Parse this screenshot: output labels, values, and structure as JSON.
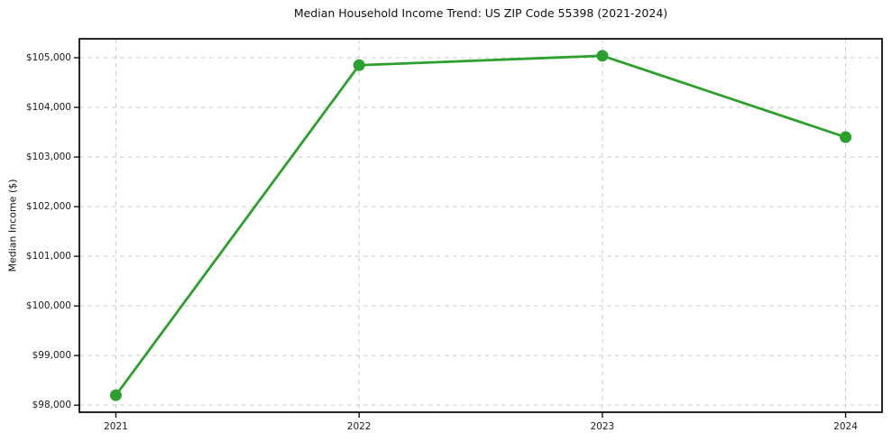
{
  "chart_data": {
    "type": "line",
    "title": "Median Household Income Trend: US ZIP Code 55398 (2021-2024)",
    "xlabel": "",
    "ylabel": "Median Income ($)",
    "x": [
      2021,
      2022,
      2023,
      2024
    ],
    "xtick_labels": [
      "2021",
      "2022",
      "2023",
      "2024"
    ],
    "series": [
      {
        "name": "Median Household Income",
        "values": [
          98200,
          104850,
          105040,
          103400
        ],
        "color": "#2ca02c",
        "marker": "circle"
      }
    ],
    "yticks": [
      98000,
      99000,
      100000,
      101000,
      102000,
      103000,
      104000,
      105000
    ],
    "ytick_labels": [
      "$98,000",
      "$99,000",
      "$100,000",
      "$101,000",
      "$102,000",
      "$103,000",
      "$104,000",
      "$105,000"
    ],
    "xlim": [
      2020.85,
      2024.15
    ],
    "ylim": [
      97858,
      105382
    ],
    "grid": true,
    "grid_style": "dashed",
    "legend": "none",
    "colors": {
      "line": "#2ca02c",
      "grid": "#c9c9c9",
      "axis": "#000000",
      "text": "#1c1c1c",
      "background": "#ffffff"
    }
  }
}
